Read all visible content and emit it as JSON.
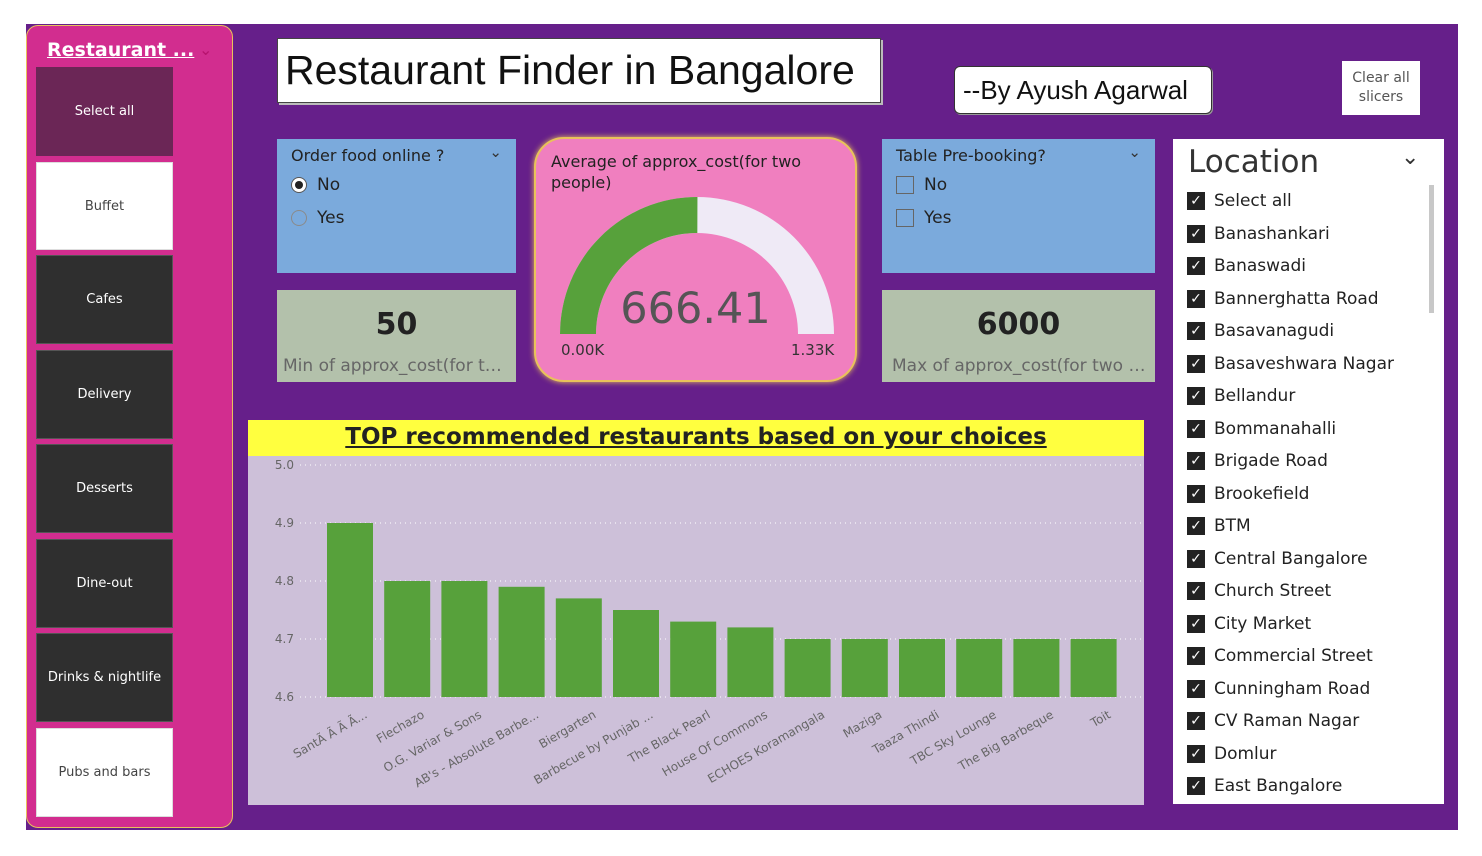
{
  "title": "Restaurant Finder in Bangalore",
  "author": "--By Ayush Agarwal",
  "clear_button": "Clear all slicers",
  "type_slicer": {
    "title": "Restaurant ...",
    "items": [
      "Select all",
      "Buffet",
      "Cafes",
      "Delivery",
      "Desserts",
      "Dine-out",
      "Drinks & nightlife",
      "Pubs and bars"
    ]
  },
  "order_online": {
    "title": "Order food online ?",
    "options": [
      "No",
      "Yes"
    ],
    "selected": "No"
  },
  "table_booking": {
    "title": "Table Pre-booking?",
    "options": [
      "No",
      "Yes"
    ]
  },
  "min_card": {
    "value": "50",
    "label": "Min of approx_cost(for two people)"
  },
  "max_card": {
    "value": "6000",
    "label": "Max of approx_cost(for two people)"
  },
  "gauge": {
    "title": "Average of approx_cost(for two people)",
    "value_text": "666.41",
    "value": 666.41,
    "min_label": "0.00K",
    "max_label": "1.33K",
    "min": 0,
    "max": 1330,
    "fill_color": "#57a13b",
    "track_color": "#efeaf6"
  },
  "location": {
    "title": "Location",
    "items": [
      "Select all",
      "Banashankari",
      "Banaswadi",
      "Bannerghatta Road",
      "Basavanagudi",
      "Basaveshwara Nagar",
      "Bellandur",
      "Bommanahalli",
      "Brigade Road",
      "Brookefield",
      "BTM",
      "Central Bangalore",
      "Church Street",
      "City Market",
      "Commercial Street",
      "Cunningham Road",
      "CV Raman Nagar",
      "Domlur",
      "East Bangalore"
    ]
  },
  "chart_data": {
    "type": "bar",
    "title": "TOP recommended restaurants based on your choices",
    "categories": [
      "SantÃ  Ã  Ã  Ã...",
      "Flechazo",
      "O.G. Variar & Sons",
      "AB's - Absolute Barbe...",
      "Biergarten",
      "Barbecue by Punjab ...",
      "The Black Pearl",
      "House Of Commons",
      "ECHOES Koramangala",
      "Maziga",
      "Taaza Thindi",
      "TBC Sky Lounge",
      "The Big Barbeque",
      "Toit"
    ],
    "values": [
      4.9,
      4.8,
      4.8,
      4.79,
      4.77,
      4.75,
      4.73,
      4.72,
      4.7,
      4.7,
      4.7,
      4.7,
      4.7,
      4.7
    ],
    "yticks": [
      "5.0",
      "4.9",
      "4.8",
      "4.7",
      "4.6"
    ],
    "ylim": [
      4.6,
      5.0
    ],
    "grid": true,
    "bar_color": "#57a13b"
  }
}
